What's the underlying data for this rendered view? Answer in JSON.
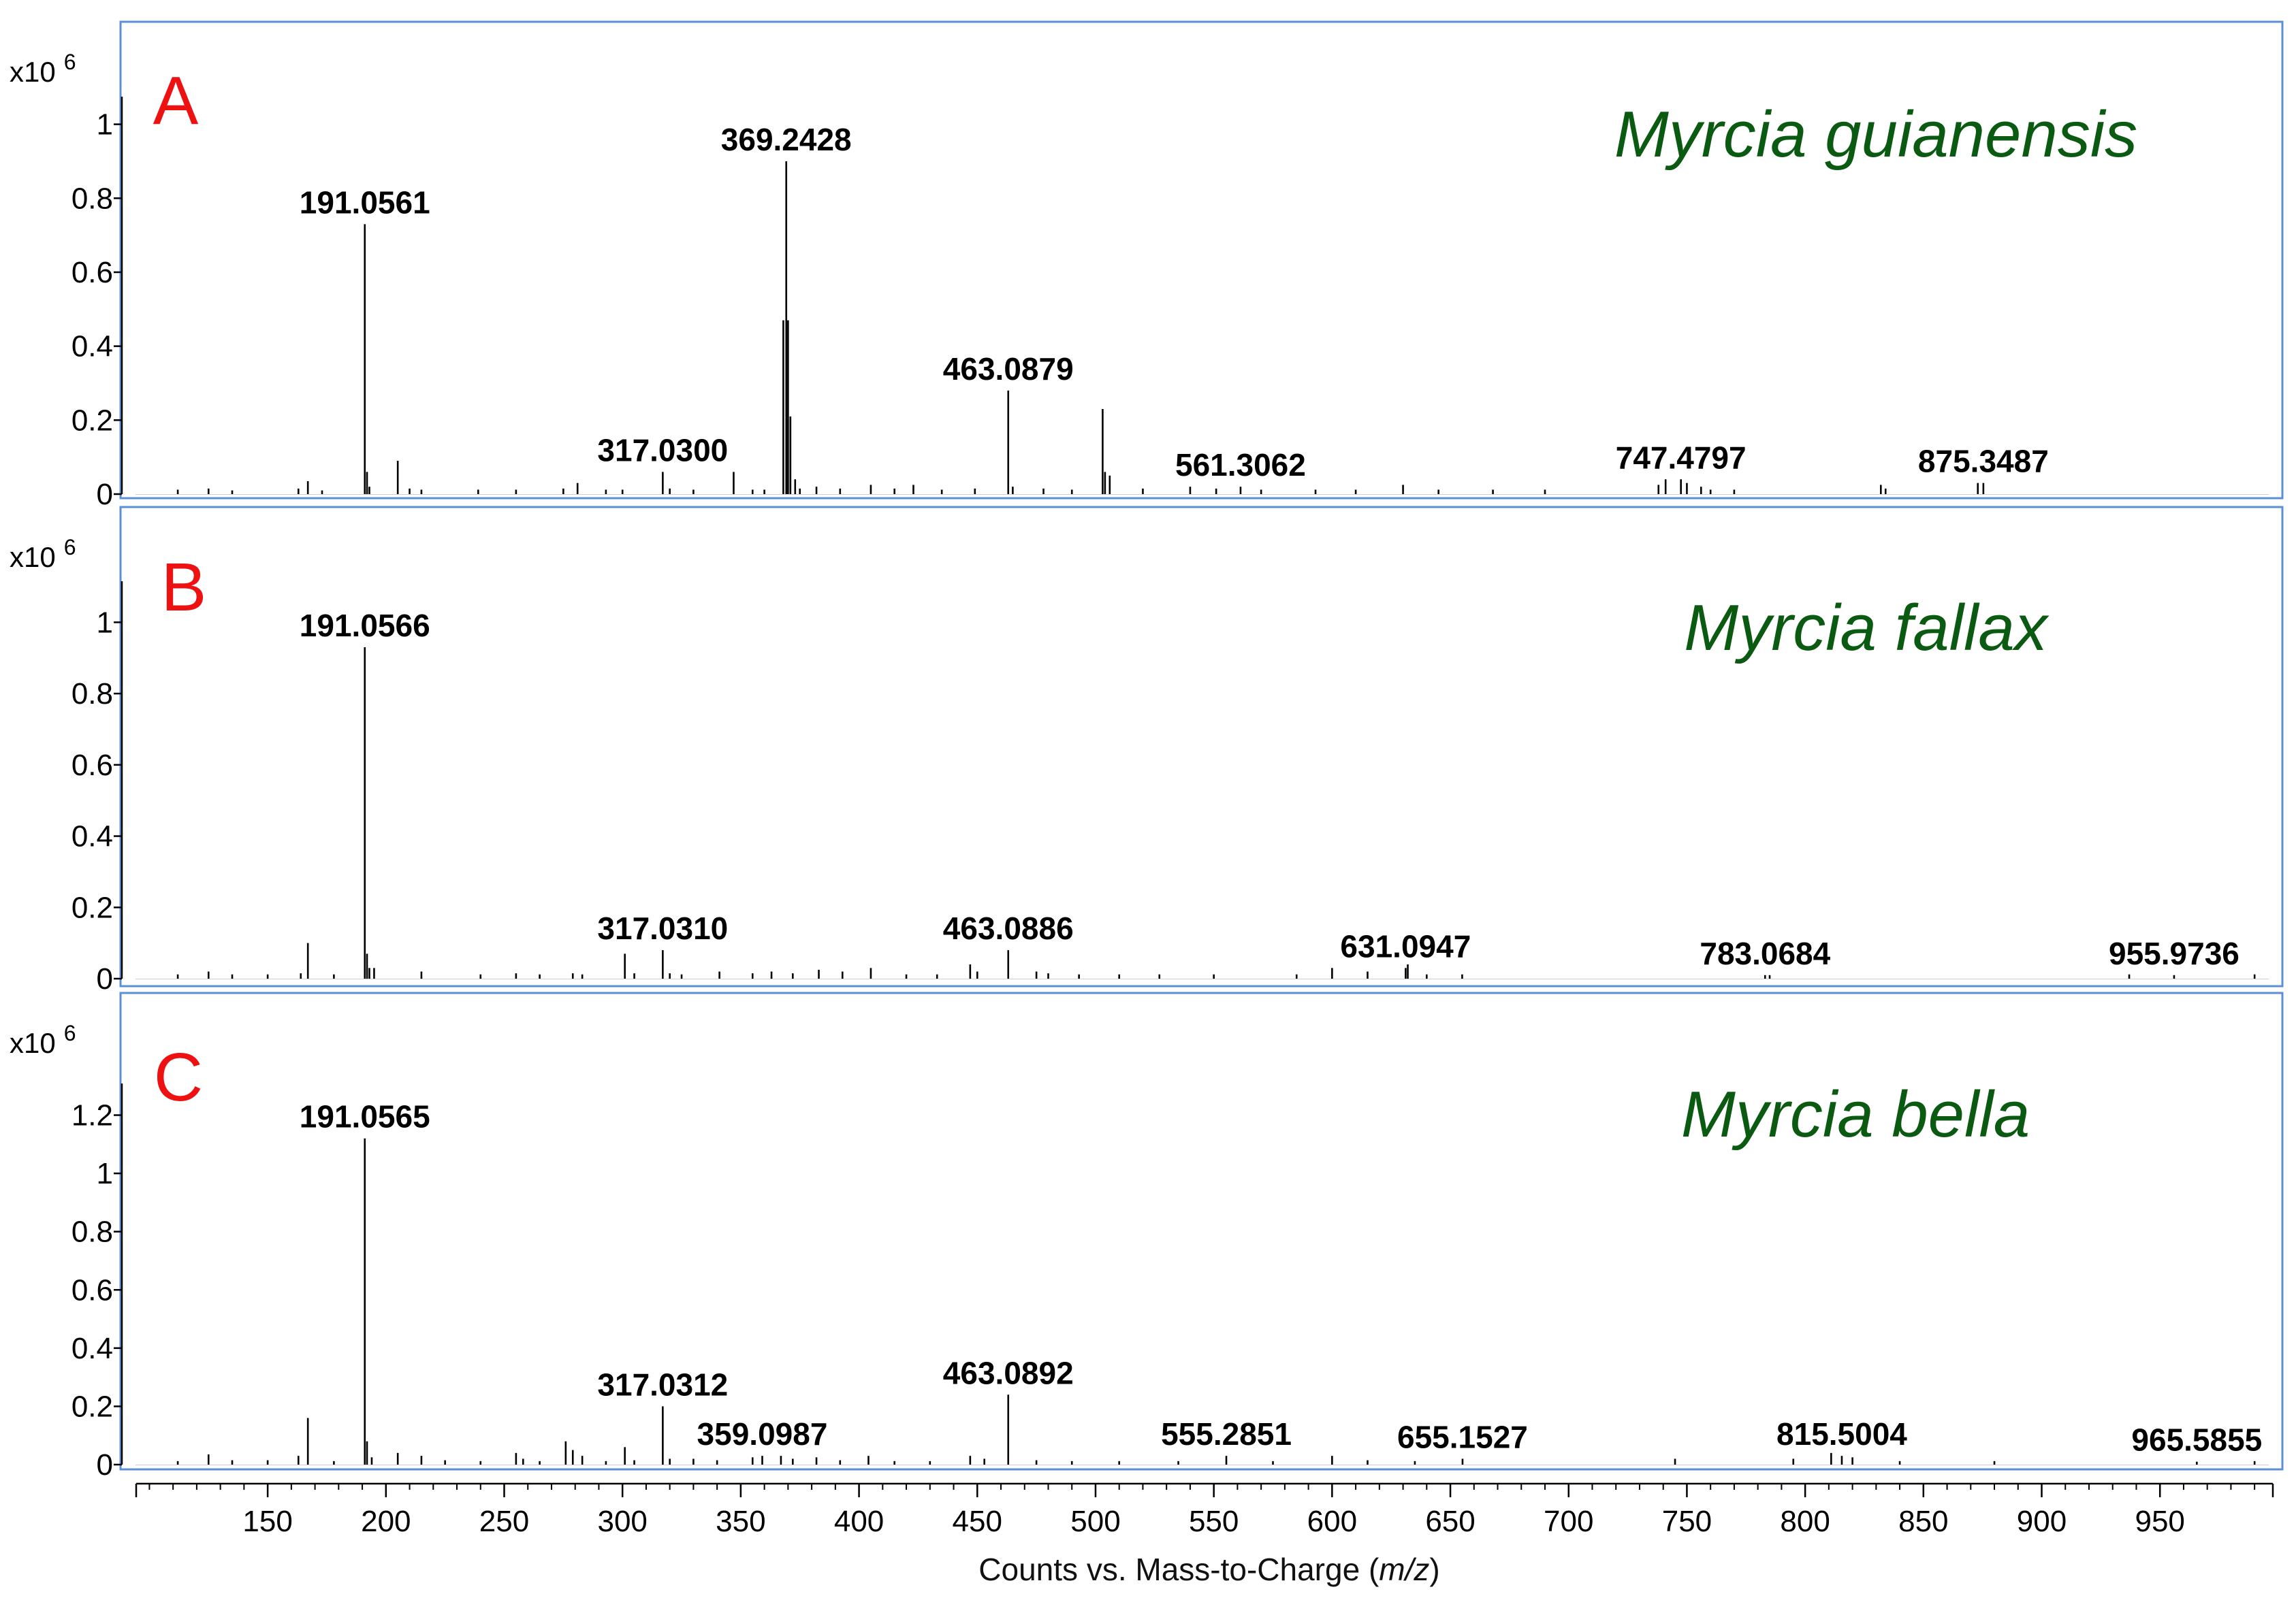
{
  "figure": {
    "xlabel_prefix": "Counts vs. Mass-to-Charge (",
    "xlabel_var": "m/z",
    "xlabel_suffix": ")",
    "colors": {
      "panel_border": "#5b8fd6",
      "panel_letter": "#ee1111",
      "species": "#0b5a12",
      "bars": "#000000",
      "text": "#000000"
    }
  },
  "chart_data": [
    {
      "type": "bar",
      "panel_label": "A",
      "species": "Myrcia guianensis",
      "ymultiplier": "x10",
      "yexponent": "6",
      "ylim": [
        0,
        1.06
      ],
      "yticks": [
        0,
        0.2,
        0.4,
        0.6,
        0.8,
        1
      ],
      "ytick_labels": [
        "0",
        "0.2",
        "0.4",
        "0.6",
        "0.8",
        "1"
      ],
      "xlim": [
        97,
        996
      ],
      "xticks": [
        150,
        200,
        250,
        300,
        350,
        400,
        450,
        500,
        550,
        600,
        650,
        700,
        750,
        800,
        850,
        900,
        950
      ],
      "xtick_labels": [
        "150",
        "200",
        "250",
        "300",
        "350",
        "400",
        "450",
        "500",
        "550",
        "600",
        "650",
        "700",
        "750",
        "800",
        "850",
        "900",
        "950"
      ],
      "x_axis_shown": false,
      "annotations": [
        {
          "x": 191.0561,
          "y": 0.73,
          "label": "191.0561"
        },
        {
          "x": 369.2428,
          "y": 0.9,
          "label": "369.2428"
        },
        {
          "x": 317.03,
          "y": 0.06,
          "label": "317.0300"
        },
        {
          "x": 463.0879,
          "y": 0.28,
          "label": "463.0879"
        },
        {
          "x": 561.3062,
          "y": 0.02,
          "label": "561.3062"
        },
        {
          "x": 747.4797,
          "y": 0.04,
          "label": "747.4797"
        },
        {
          "x": 875.3487,
          "y": 0.03,
          "label": "875.3487"
        }
      ],
      "peaks": [
        [
          112,
          0.012
        ],
        [
          125,
          0.015
        ],
        [
          135,
          0.01
        ],
        [
          163,
          0.015
        ],
        [
          167,
          0.035
        ],
        [
          173,
          0.01
        ],
        [
          191.0561,
          0.73
        ],
        [
          192,
          0.06
        ],
        [
          193,
          0.02
        ],
        [
          205,
          0.09
        ],
        [
          210,
          0.015
        ],
        [
          215,
          0.012
        ],
        [
          239,
          0.012
        ],
        [
          255,
          0.012
        ],
        [
          275,
          0.015
        ],
        [
          281,
          0.03
        ],
        [
          293,
          0.012
        ],
        [
          300,
          0.012
        ],
        [
          317.03,
          0.06
        ],
        [
          320,
          0.015
        ],
        [
          330,
          0.012
        ],
        [
          347,
          0.06
        ],
        [
          355,
          0.012
        ],
        [
          360,
          0.012
        ],
        [
          368,
          0.47
        ],
        [
          369.2428,
          0.9
        ],
        [
          370,
          0.47
        ],
        [
          371,
          0.21
        ],
        [
          373,
          0.04
        ],
        [
          375,
          0.015
        ],
        [
          382,
          0.02
        ],
        [
          392,
          0.015
        ],
        [
          405,
          0.025
        ],
        [
          415,
          0.015
        ],
        [
          423,
          0.025
        ],
        [
          435,
          0.012
        ],
        [
          449,
          0.015
        ],
        [
          463.0879,
          0.28
        ],
        [
          465,
          0.02
        ],
        [
          478,
          0.015
        ],
        [
          490,
          0.012
        ],
        [
          503,
          0.23
        ],
        [
          504,
          0.06
        ],
        [
          506,
          0.05
        ],
        [
          520,
          0.015
        ],
        [
          540,
          0.02
        ],
        [
          551,
          0.015
        ],
        [
          561.3062,
          0.02
        ],
        [
          570,
          0.012
        ],
        [
          593,
          0.012
        ],
        [
          610,
          0.012
        ],
        [
          630,
          0.025
        ],
        [
          645,
          0.012
        ],
        [
          668,
          0.012
        ],
        [
          690,
          0.012
        ],
        [
          738,
          0.025
        ],
        [
          741,
          0.04
        ],
        [
          747.4797,
          0.04
        ],
        [
          750,
          0.03
        ],
        [
          756,
          0.02
        ],
        [
          760,
          0.012
        ],
        [
          770,
          0.012
        ],
        [
          832,
          0.025
        ],
        [
          834,
          0.015
        ],
        [
          873,
          0.03
        ],
        [
          875.3487,
          0.03
        ]
      ]
    },
    {
      "type": "bar",
      "panel_label": "B",
      "species": "Myrcia fallax",
      "ymultiplier": "x10",
      "yexponent": "6",
      "ylim": [
        0,
        1.1
      ],
      "yticks": [
        0,
        0.2,
        0.4,
        0.6,
        0.8,
        1
      ],
      "ytick_labels": [
        "0",
        "0.2",
        "0.4",
        "0.6",
        "0.8",
        "1"
      ],
      "xlim": [
        97,
        996
      ],
      "xticks": [
        150,
        200,
        250,
        300,
        350,
        400,
        450,
        500,
        550,
        600,
        650,
        700,
        750,
        800,
        850,
        900,
        950
      ],
      "xtick_labels": [
        "150",
        "200",
        "250",
        "300",
        "350",
        "400",
        "450",
        "500",
        "550",
        "600",
        "650",
        "700",
        "750",
        "800",
        "850",
        "900",
        "950"
      ],
      "x_axis_shown": false,
      "annotations": [
        {
          "x": 191.0566,
          "y": 0.93,
          "label": "191.0566"
        },
        {
          "x": 317.031,
          "y": 0.08,
          "label": "317.0310"
        },
        {
          "x": 463.0886,
          "y": 0.08,
          "label": "463.0886"
        },
        {
          "x": 631.0947,
          "y": 0.03,
          "label": "631.0947"
        },
        {
          "x": 783.0684,
          "y": 0.01,
          "label": "783.0684"
        },
        {
          "x": 955.9736,
          "y": 0.01,
          "label": "955.9736"
        }
      ],
      "peaks": [
        [
          112,
          0.012
        ],
        [
          125,
          0.02
        ],
        [
          135,
          0.012
        ],
        [
          150,
          0.012
        ],
        [
          164,
          0.015
        ],
        [
          167,
          0.1
        ],
        [
          178,
          0.012
        ],
        [
          191.0566,
          0.93
        ],
        [
          192,
          0.07
        ],
        [
          193,
          0.03
        ],
        [
          195,
          0.03
        ],
        [
          215,
          0.02
        ],
        [
          240,
          0.012
        ],
        [
          255,
          0.015
        ],
        [
          265,
          0.012
        ],
        [
          279,
          0.015
        ],
        [
          283,
          0.012
        ],
        [
          301,
          0.07
        ],
        [
          305,
          0.015
        ],
        [
          317.031,
          0.08
        ],
        [
          320,
          0.015
        ],
        [
          325,
          0.012
        ],
        [
          341,
          0.02
        ],
        [
          355,
          0.015
        ],
        [
          363,
          0.02
        ],
        [
          372,
          0.015
        ],
        [
          383,
          0.025
        ],
        [
          393,
          0.02
        ],
        [
          405,
          0.03
        ],
        [
          420,
          0.012
        ],
        [
          433,
          0.012
        ],
        [
          447,
          0.04
        ],
        [
          450,
          0.02
        ],
        [
          463.0886,
          0.08
        ],
        [
          475,
          0.02
        ],
        [
          480,
          0.015
        ],
        [
          493,
          0.012
        ],
        [
          510,
          0.012
        ],
        [
          527,
          0.012
        ],
        [
          550,
          0.012
        ],
        [
          585,
          0.012
        ],
        [
          600,
          0.03
        ],
        [
          615,
          0.02
        ],
        [
          631.0947,
          0.03
        ],
        [
          632,
          0.04
        ],
        [
          640,
          0.012
        ],
        [
          655,
          0.012
        ],
        [
          783.0684,
          0.01
        ],
        [
          785,
          0.01
        ],
        [
          937,
          0.012
        ],
        [
          955.9736,
          0.01
        ],
        [
          990,
          0.012
        ]
      ]
    },
    {
      "type": "bar",
      "panel_label": "C",
      "species": "Myrcia bella",
      "ymultiplier": "x10",
      "yexponent": "6",
      "ylim": [
        0,
        1.29
      ],
      "yticks": [
        0,
        0.2,
        0.4,
        0.6,
        0.8,
        1,
        1.2
      ],
      "ytick_labels": [
        "0",
        "0.2",
        "0.4",
        "0.6",
        "0.8",
        "1",
        "1.2"
      ],
      "xlim": [
        97,
        996
      ],
      "xticks": [
        150,
        200,
        250,
        300,
        350,
        400,
        450,
        500,
        550,
        600,
        650,
        700,
        750,
        800,
        850,
        900,
        950
      ],
      "xtick_labels": [
        "150",
        "200",
        "250",
        "300",
        "350",
        "400",
        "450",
        "500",
        "550",
        "600",
        "650",
        "700",
        "750",
        "800",
        "850",
        "900",
        "950"
      ],
      "x_axis_shown": true,
      "annotations": [
        {
          "x": 191.0565,
          "y": 1.12,
          "label": "191.0565"
        },
        {
          "x": 317.0312,
          "y": 0.2,
          "label": "317.0312"
        },
        {
          "x": 359.0987,
          "y": 0.03,
          "label": "359.0987"
        },
        {
          "x": 463.0892,
          "y": 0.24,
          "label": "463.0892"
        },
        {
          "x": 555.2851,
          "y": 0.03,
          "label": "555.2851"
        },
        {
          "x": 655.1527,
          "y": 0.02,
          "label": "655.1527"
        },
        {
          "x": 815.5004,
          "y": 0.03,
          "label": "815.5004"
        },
        {
          "x": 965.5855,
          "y": 0.01,
          "label": "965.5855"
        }
      ],
      "peaks": [
        [
          112,
          0.012
        ],
        [
          125,
          0.035
        ],
        [
          135,
          0.015
        ],
        [
          150,
          0.015
        ],
        [
          163,
          0.03
        ],
        [
          167,
          0.16
        ],
        [
          178,
          0.012
        ],
        [
          191.0565,
          1.12
        ],
        [
          192,
          0.08
        ],
        [
          194,
          0.025
        ],
        [
          205,
          0.04
        ],
        [
          215,
          0.03
        ],
        [
          225,
          0.015
        ],
        [
          240,
          0.012
        ],
        [
          255,
          0.04
        ],
        [
          258,
          0.02
        ],
        [
          265,
          0.012
        ],
        [
          276,
          0.08
        ],
        [
          279,
          0.05
        ],
        [
          283,
          0.03
        ],
        [
          293,
          0.012
        ],
        [
          301,
          0.06
        ],
        [
          305,
          0.015
        ],
        [
          317.0312,
          0.2
        ],
        [
          320,
          0.02
        ],
        [
          330,
          0.02
        ],
        [
          340,
          0.015
        ],
        [
          355,
          0.025
        ],
        [
          359.0987,
          0.03
        ],
        [
          367,
          0.03
        ],
        [
          372,
          0.02
        ],
        [
          382,
          0.025
        ],
        [
          392,
          0.015
        ],
        [
          404,
          0.03
        ],
        [
          415,
          0.012
        ],
        [
          430,
          0.012
        ],
        [
          447,
          0.03
        ],
        [
          453,
          0.02
        ],
        [
          463.0892,
          0.24
        ],
        [
          475,
          0.015
        ],
        [
          490,
          0.012
        ],
        [
          510,
          0.012
        ],
        [
          535,
          0.012
        ],
        [
          555.2851,
          0.03
        ],
        [
          575,
          0.012
        ],
        [
          600,
          0.03
        ],
        [
          615,
          0.015
        ],
        [
          635,
          0.012
        ],
        [
          655.1527,
          0.02
        ],
        [
          745,
          0.02
        ],
        [
          795,
          0.02
        ],
        [
          811,
          0.04
        ],
        [
          815.5004,
          0.03
        ],
        [
          820,
          0.025
        ],
        [
          840,
          0.012
        ],
        [
          880,
          0.012
        ],
        [
          965.5855,
          0.01
        ],
        [
          990,
          0.012
        ]
      ]
    }
  ]
}
